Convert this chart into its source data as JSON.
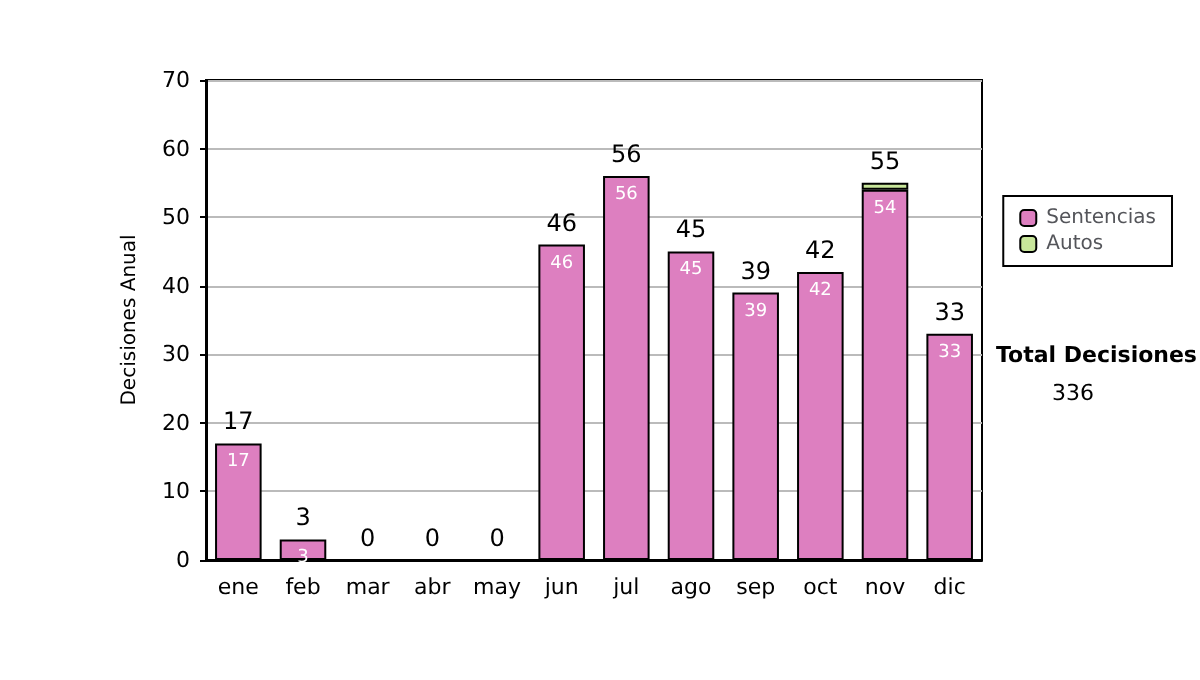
{
  "chart_data": {
    "type": "bar",
    "ylabel": "Decisiones Anual",
    "categories": [
      "ene",
      "feb",
      "mar",
      "abr",
      "may",
      "jun",
      "jul",
      "ago",
      "sep",
      "oct",
      "nov",
      "dic"
    ],
    "stacked": true,
    "series": [
      {
        "name": "Sentencias",
        "color": "#dd7fc0",
        "values": [
          17,
          3,
          0,
          0,
          0,
          46,
          56,
          45,
          39,
          42,
          54,
          33
        ],
        "value_labels": [
          "17",
          "3",
          null,
          null,
          null,
          "46",
          "56",
          "45",
          "39",
          "42",
          "54",
          "33"
        ]
      },
      {
        "name": "Autos",
        "color": "#c8e69b",
        "values": [
          0,
          0,
          0,
          0,
          0,
          0,
          0,
          0,
          0,
          0,
          1,
          0
        ]
      }
    ],
    "totals": [
      "17",
      "3",
      "0",
      "0",
      "0",
      "46",
      "56",
      "45",
      "39",
      "42",
      "55",
      "33"
    ],
    "ylim": [
      0,
      70
    ],
    "yticks": [
      0,
      10,
      20,
      30,
      40,
      50,
      60,
      70
    ],
    "grid": "y",
    "legend": "right",
    "annotations": [
      "Total Decisiones",
      "336"
    ]
  }
}
